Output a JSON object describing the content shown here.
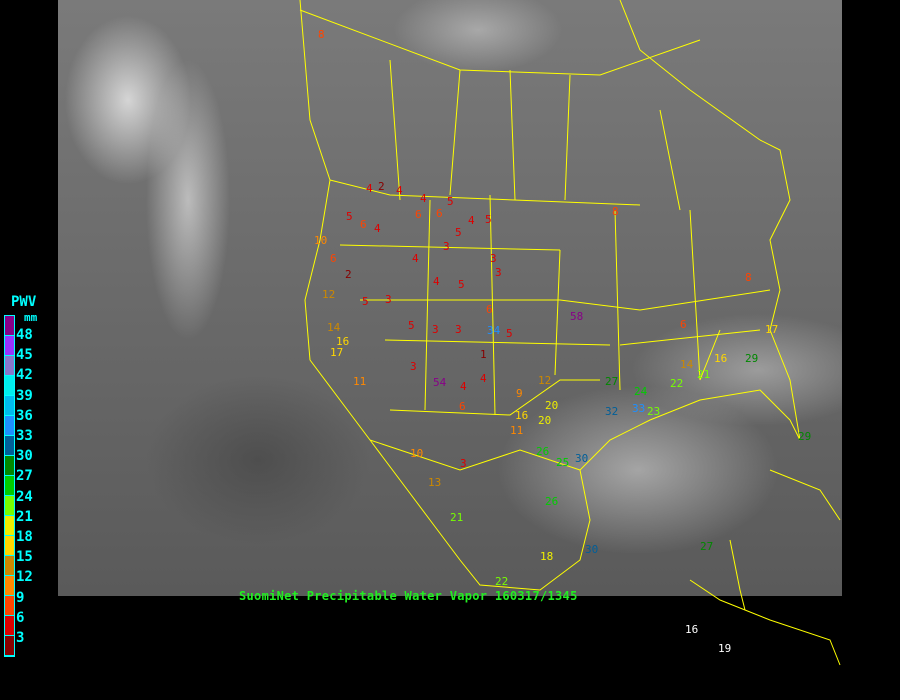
{
  "title": "SuomiNet Precipitable Water Vapor 160317/1345",
  "legend": {
    "title": "PWV",
    "unit": "mm",
    "labels": [
      "48",
      "45",
      "42",
      "39",
      "36",
      "33",
      "30",
      "27",
      "24",
      "21",
      "18",
      "15",
      "12",
      "9",
      "6",
      "3"
    ],
    "colors": [
      "#880088",
      "#9933ff",
      "#8877cc",
      "#00eeee",
      "#00bbee",
      "#1e90ff",
      "#005f99",
      "#008800",
      "#00cc00",
      "#77ff00",
      "#eeee00",
      "#ffd700",
      "#cc8800",
      "#ff8800",
      "#ff4400",
      "#dd0000",
      "#880000"
    ]
  },
  "colors": {
    "boundaries": "#ffff00",
    "background": "#000000",
    "title": "#22ee22"
  },
  "stations": [
    {
      "v": "8"
    },
    {
      "v": "4"
    },
    {
      "v": "2"
    },
    {
      "v": "4"
    },
    {
      "v": "5"
    },
    {
      "v": "6"
    },
    {
      "v": "6"
    },
    {
      "v": "4"
    },
    {
      "v": "5"
    },
    {
      "v": "4"
    },
    {
      "v": "5"
    },
    {
      "v": "6"
    },
    {
      "v": "4"
    },
    {
      "v": "3"
    },
    {
      "v": "5"
    },
    {
      "v": "10"
    },
    {
      "v": "6"
    },
    {
      "v": "2"
    },
    {
      "v": "4"
    },
    {
      "v": "3"
    },
    {
      "v": "3"
    },
    {
      "v": "12"
    },
    {
      "v": "5"
    },
    {
      "v": "3"
    },
    {
      "v": "4"
    },
    {
      "v": "5"
    },
    {
      "v": "6"
    },
    {
      "v": "5"
    },
    {
      "v": "14"
    },
    {
      "v": "16"
    },
    {
      "v": "17"
    },
    {
      "v": "3"
    },
    {
      "v": "3"
    },
    {
      "v": "34"
    },
    {
      "v": "5"
    },
    {
      "v": "1"
    },
    {
      "v": "3"
    },
    {
      "v": "4"
    },
    {
      "v": "54"
    },
    {
      "v": "4"
    },
    {
      "v": "6"
    },
    {
      "v": "12"
    },
    {
      "v": "9"
    },
    {
      "v": "16"
    },
    {
      "v": "20"
    },
    {
      "v": "20"
    },
    {
      "v": "11"
    },
    {
      "v": "10"
    },
    {
      "v": "3"
    },
    {
      "v": "13"
    },
    {
      "v": "21"
    },
    {
      "v": "26"
    },
    {
      "v": "25"
    },
    {
      "v": "30"
    },
    {
      "v": "30"
    },
    {
      "v": "26"
    },
    {
      "v": "58"
    },
    {
      "v": "6"
    },
    {
      "v": "8"
    },
    {
      "v": "8"
    },
    {
      "v": "11"
    },
    {
      "v": "14"
    },
    {
      "v": "22"
    },
    {
      "v": "21"
    },
    {
      "v": "16"
    },
    {
      "v": "29"
    },
    {
      "v": "27"
    },
    {
      "v": "24"
    },
    {
      "v": "32"
    },
    {
      "v": "33"
    },
    {
      "v": "17"
    },
    {
      "v": "23"
    },
    {
      "v": "29"
    },
    {
      "v": "16"
    },
    {
      "v": "19"
    },
    {
      "v": "18"
    },
    {
      "v": "27"
    },
    {
      "v": "22"
    }
  ]
}
